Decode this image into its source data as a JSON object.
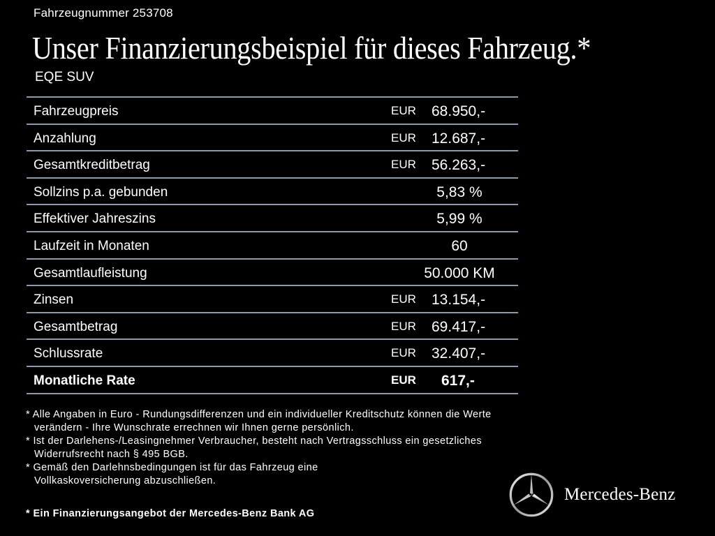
{
  "header": {
    "vehicle_number": "Fahrzeugnummer 253708",
    "headline": "Unser Finanzierungsbeispiel für dieses Fahrzeug.*",
    "model": "EQE SUV"
  },
  "table": {
    "rows": [
      {
        "label": "Fahrzeugpreis",
        "currency": "EUR",
        "value": "68.950,-"
      },
      {
        "label": "Anzahlung",
        "currency": "EUR",
        "value": "12.687,-"
      },
      {
        "label": "Gesamtkreditbetrag",
        "currency": "EUR",
        "value": "56.263,-"
      },
      {
        "label": "Sollzins p.a. gebunden",
        "currency": "",
        "value": "5,83 %"
      },
      {
        "label": "Effektiver Jahreszins",
        "currency": "",
        "value": "5,99 %"
      },
      {
        "label": "Laufzeit in Monaten",
        "currency": "",
        "value": "60"
      },
      {
        "label": "Gesamtlaufleistung",
        "currency": "",
        "value": "50.000 KM"
      },
      {
        "label": "Zinsen",
        "currency": "EUR",
        "value": "13.154,-"
      },
      {
        "label": "Gesamtbetrag",
        "currency": "EUR",
        "value": "69.417,-"
      },
      {
        "label": "Schlussrate",
        "currency": "EUR",
        "value": "32.407,-"
      },
      {
        "label": "Monatliche Rate",
        "currency": "EUR",
        "value": "617,-"
      }
    ]
  },
  "footnotes": {
    "items": [
      "* Alle Angaben in Euro - Rundungsdifferenzen und ein individueller Kreditschutz können die Werte verändern - Ihre Wunschrate errechnen wir Ihnen gerne persönlich.",
      "* Ist der Darlehens-/Leasingnehmer Verbraucher, besteht nach Vertragsschluss ein gesetzliches Widerrufsrecht nach § 495 BGB.",
      "* Gemäß den Darlehnsbedingungen ist für das Fahrzeug eine Vollkaskoversicherung abzuschließen."
    ],
    "bank": "* Ein Finanzierungsangebot der Mercedes-Benz Bank AG"
  },
  "brand": {
    "name": "Mercedes-Benz",
    "logo_icon": "three-pointed-star-icon"
  },
  "colors": {
    "background": "#000000",
    "text": "#ffffff",
    "divider": "#8e9aab"
  }
}
